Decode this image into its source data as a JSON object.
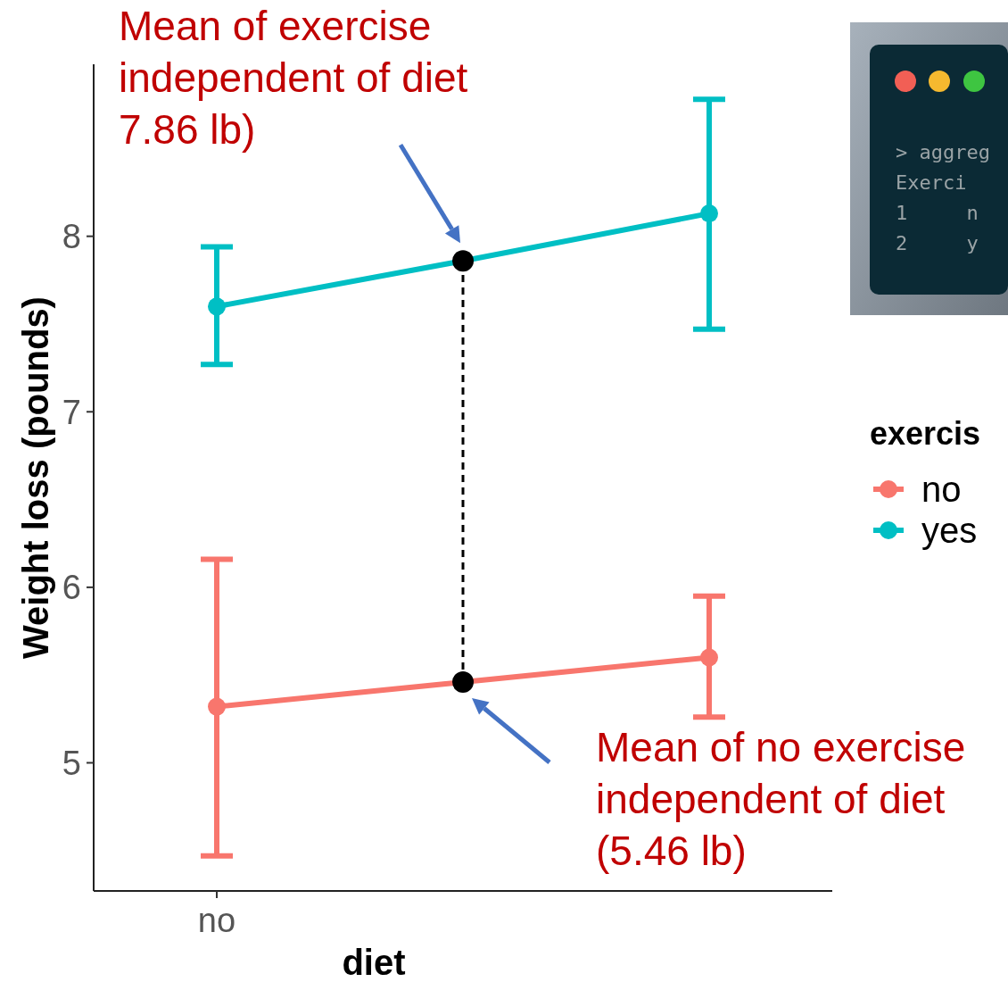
{
  "chart_data": {
    "type": "line",
    "xlabel": "diet",
    "ylabel": "Weight loss (pounds)",
    "legend_title": "exercis",
    "legend": "right",
    "marker": "circle",
    "grid": false,
    "categories": [
      "no",
      null,
      null
    ],
    "ylim": [
      4.27,
      8.98
    ],
    "yticks": [
      5,
      6,
      7,
      8
    ],
    "series": [
      {
        "name": "no",
        "color": "#f8766d",
        "colors": [
          "#f8766d",
          "#000000",
          "#f8766d"
        ],
        "values": [
          5.32,
          5.46,
          5.6
        ],
        "errors": [
          [
            4.47,
            6.16
          ],
          null,
          [
            5.26,
            5.95
          ]
        ]
      },
      {
        "name": "yes",
        "color": "#00bfc4",
        "colors": [
          "#00bfc4",
          "#000000",
          "#00bfc4"
        ],
        "values": [
          7.6,
          7.86,
          8.13
        ],
        "errors": [
          [
            7.27,
            7.94
          ],
          null,
          [
            7.47,
            8.78
          ]
        ]
      }
    ],
    "annotations": [
      "Mean of exercise\nindependent of diet\n7.86 lb)",
      "Mean of no exercise\nindependent of diet\n(5.46 lb)",
      "> aggreg",
      "Exerci",
      "1     n",
      "2     y"
    ]
  }
}
